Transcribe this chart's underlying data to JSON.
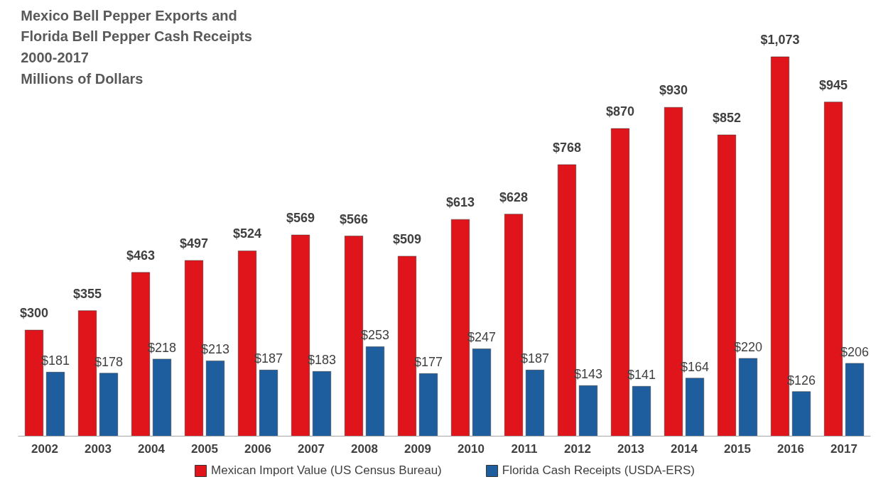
{
  "chart_data": {
    "type": "bar",
    "title": "Mexico Bell Pepper Exports and\nFlorida Bell Pepper Cash Receipts\n2000-2017\nMillions of Dollars",
    "categories": [
      "2002",
      "2003",
      "2004",
      "2005",
      "2006",
      "2007",
      "2008",
      "2009",
      "2010",
      "2011",
      "2012",
      "2013",
      "2014",
      "2015",
      "2016",
      "2017"
    ],
    "series": [
      {
        "name": "Mexican Import Value (US Census Bureau)",
        "color": "#e0151b",
        "values": [
          300,
          355,
          463,
          497,
          524,
          569,
          566,
          509,
          613,
          628,
          768,
          870,
          930,
          852,
          1073,
          945
        ],
        "value_labels": [
          "$300",
          "$355",
          "$463",
          "$497",
          "$524",
          "$569",
          "$566",
          "$509",
          "$613",
          "$628",
          "$768",
          "$870",
          "$930",
          "$852",
          "$1,073",
          "$945"
        ]
      },
      {
        "name": "Florida Cash Receipts (USDA-ERS)",
        "color": "#1f5e9e",
        "values": [
          181,
          178,
          218,
          213,
          187,
          183,
          253,
          177,
          247,
          187,
          143,
          141,
          164,
          220,
          126,
          206
        ],
        "value_labels": [
          "$181",
          "$178",
          "$218",
          "$213",
          "$187",
          "$183",
          "$253",
          "$177",
          "$247",
          "$187",
          "$143",
          "$141",
          "$164",
          "$220",
          "$126",
          "$206"
        ]
      }
    ],
    "legend": "bottom",
    "grid": false
  }
}
